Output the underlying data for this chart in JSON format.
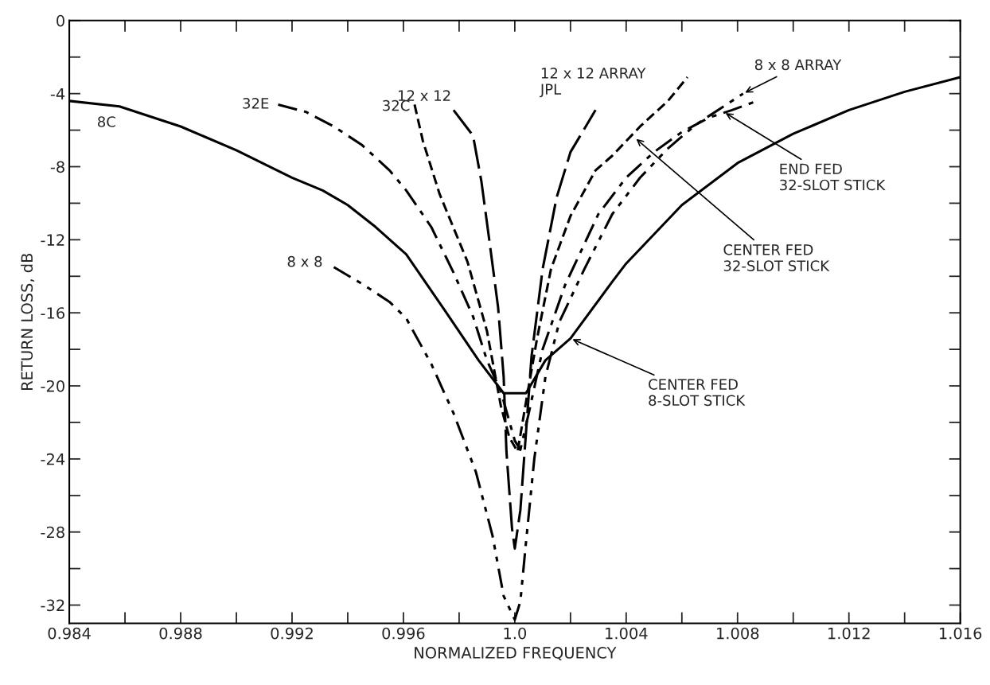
{
  "chart_data": {
    "type": "line",
    "xlabel": "NORMALIZED FREQUENCY",
    "ylabel": "RETURN LOSS, dB",
    "xlim": [
      0.984,
      1.016
    ],
    "ylim": [
      -33,
      0
    ],
    "xticks": [
      {
        "value": 0.984,
        "label": "0.984"
      },
      {
        "value": 0.986,
        "label": null
      },
      {
        "value": 0.988,
        "label": "0.988"
      },
      {
        "value": 0.99,
        "label": null
      },
      {
        "value": 0.992,
        "label": "0.992"
      },
      {
        "value": 0.994,
        "label": null
      },
      {
        "value": 0.996,
        "label": "0.996"
      },
      {
        "value": 0.998,
        "label": null
      },
      {
        "value": 1.0,
        "label": "1.0"
      },
      {
        "value": 1.002,
        "label": null
      },
      {
        "value": 1.004,
        "label": "1.004"
      },
      {
        "value": 1.006,
        "label": null
      },
      {
        "value": 1.008,
        "label": "1.008"
      },
      {
        "value": 1.01,
        "label": null
      },
      {
        "value": 1.012,
        "label": "1.012"
      },
      {
        "value": 1.014,
        "label": null
      },
      {
        "value": 1.016,
        "label": "1.016"
      }
    ],
    "yticks": [
      0,
      {
        "value": -2,
        "label": null
      },
      -4,
      {
        "value": -6,
        "label": null
      },
      -8,
      {
        "value": -10,
        "label": null
      },
      -12,
      {
        "value": -14,
        "label": null
      },
      -16,
      {
        "value": -18,
        "label": null
      },
      -20,
      {
        "value": -22,
        "label": null
      },
      -24,
      {
        "value": -26,
        "label": null
      },
      -28,
      {
        "value": -30,
        "label": null
      },
      -32
    ],
    "grid": false,
    "legend": false,
    "series": [
      {
        "name": "8C",
        "color": "#000000",
        "line_style": "solid",
        "x": [
          0.984,
          0.9858,
          0.988,
          0.99,
          0.992,
          0.9931,
          0.994,
          0.995,
          0.9961,
          0.9975,
          0.9987,
          0.9996,
          1.0004,
          1.0011,
          1.002,
          1.0035,
          1.004,
          1.006,
          1.008,
          1.01,
          1.012,
          1.014,
          1.016
        ],
        "values": [
          -4.4,
          -4.7,
          -5.8,
          -7.1,
          -8.6,
          -9.3,
          -10.1,
          -11.3,
          -12.8,
          -15.9,
          -18.6,
          -20.4,
          -20.4,
          -18.6,
          -17.4,
          -14.3,
          -13.3,
          -10.1,
          -7.8,
          -6.2,
          -4.9,
          -3.9,
          -3.1
        ]
      },
      {
        "name": "32E",
        "color": "#000000",
        "line_style": "dashdot",
        "x": [
          0.9915,
          0.9925,
          0.9935,
          0.9945,
          0.9955,
          0.9961,
          0.997,
          0.9978,
          0.9985,
          0.999,
          0.9995,
          1.0,
          1.0002,
          1.0005,
          1.001,
          1.0018,
          1.003,
          1.004,
          1.005,
          1.006,
          1.007,
          1.0078,
          1.0087
        ],
        "values": [
          -4.6,
          -5.0,
          -5.8,
          -6.8,
          -8.2,
          -9.3,
          -11.3,
          -13.8,
          -16.2,
          -18.6,
          -20.3,
          -23.0,
          -23.5,
          -21.5,
          -18.0,
          -14.5,
          -10.6,
          -8.6,
          -7.2,
          -6.1,
          -5.3,
          -4.9,
          -4.4
        ]
      },
      {
        "name": "32C",
        "color": "#000000",
        "line_style": "dashed",
        "x": [
          0.9964,
          0.9967,
          0.9973,
          0.9983,
          0.999,
          0.9995,
          0.9998,
          1.0001,
          1.0004,
          1.0008,
          1.0013,
          1.002,
          1.0029,
          1.0035,
          1.0045,
          1.0055,
          1.0062
        ],
        "values": [
          -4.6,
          -6.6,
          -9.5,
          -13.2,
          -17.0,
          -21.1,
          -22.8,
          -23.6,
          -20.9,
          -17.4,
          -13.6,
          -10.7,
          -8.2,
          -7.4,
          -5.8,
          -4.4,
          -3.1
        ]
      },
      {
        "name": "12 x 12",
        "color": "#000000",
        "line_style": "longdash",
        "x": [
          0.9978,
          0.9985,
          0.9988,
          0.9991,
          0.9994,
          0.9996,
          0.9997,
          0.9999,
          1.0,
          1.0002,
          1.0004,
          1.0006,
          1.001,
          1.0015,
          1.002,
          1.0029
        ],
        "values": [
          -4.9,
          -6.3,
          -8.8,
          -12.2,
          -15.7,
          -19.5,
          -23.6,
          -27.8,
          -28.9,
          -26.8,
          -22.6,
          -18.4,
          -13.6,
          -9.7,
          -7.2,
          -4.9
        ]
      },
      {
        "name": "8 x 8",
        "color": "#000000",
        "line_style": "dashdotdot",
        "x": [
          0.9935,
          0.9945,
          0.9955,
          0.9961,
          0.997,
          0.9978,
          0.9986,
          0.9992,
          0.9996,
          1.0,
          1.0002,
          1.0004,
          1.0007,
          1.0011,
          1.0016,
          1.0025,
          1.0035,
          1.0045,
          1.0055,
          1.0065,
          1.0075,
          1.0082
        ],
        "values": [
          -13.5,
          -14.4,
          -15.4,
          -16.3,
          -18.8,
          -21.5,
          -24.7,
          -28.2,
          -31.5,
          -32.8,
          -31.8,
          -28.6,
          -24.0,
          -19.5,
          -16.5,
          -13.6,
          -10.6,
          -8.6,
          -7.0,
          -5.7,
          -4.7,
          -4.0
        ]
      }
    ],
    "annotations": [
      {
        "text": "12 x 12 ARRAY\nJPL",
        "x": 1.0029,
        "y": -4.9
      },
      {
        "text": "8 x 8 ARRAY",
        "x": 1.0082,
        "y": -4.0
      },
      {
        "text": "END FED\n32-SLOT STICK",
        "x": 1.0075,
        "y": -5.0
      },
      {
        "text": "CENTER FED\n32-SLOT STICK",
        "x": 1.0043,
        "y": -6.4
      },
      {
        "text": "CENTER FED\n8-SLOT STICK",
        "x": 1.002,
        "y": -17.4
      }
    ]
  }
}
